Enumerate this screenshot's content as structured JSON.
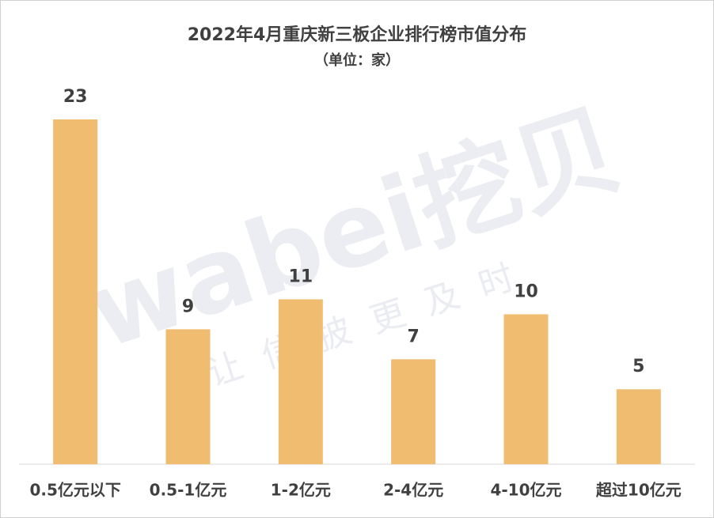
{
  "chart_data": {
    "type": "bar",
    "title": "2022年4月重庆新三板企业排行榜市值分布",
    "subtitle": "（单位：家）",
    "categories": [
      "0.5亿元以下",
      "0.5-1亿元",
      "1-2亿元",
      "2-4亿元",
      "4-10亿元",
      "超过10亿元"
    ],
    "values": [
      23,
      9,
      11,
      7,
      10,
      5
    ],
    "color": "#f0bc6f",
    "watermark": {
      "brand": "wabei挖贝",
      "slogan": "让信披更及时"
    }
  }
}
